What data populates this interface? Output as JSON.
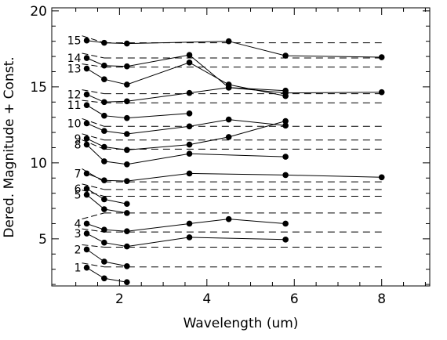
{
  "chart_data": {
    "type": "line",
    "title": "",
    "xlabel": "Wavelength (um)",
    "ylabel": "Dered. Magnitude + Const.",
    "xlim": [
      0.45,
      9.1
    ],
    "ylim": [
      1.9,
      20.2
    ],
    "x_ticks": [
      2,
      4,
      6,
      8
    ],
    "y_ticks": [
      5,
      10,
      15,
      20
    ],
    "grid": false,
    "legend": "none",
    "series": [
      {
        "name": "1",
        "baseline": 3.15,
        "x": [
          1.25,
          1.65,
          2.17
        ],
        "y": [
          3.1,
          2.4,
          2.15
        ]
      },
      {
        "name": "2",
        "baseline": 4.45,
        "x": [
          1.25,
          1.65,
          2.17
        ],
        "y": [
          4.3,
          3.5,
          3.2
        ]
      },
      {
        "name": "3",
        "baseline": 5.45,
        "x": [
          1.25,
          1.65,
          2.17,
          3.6,
          5.8
        ],
        "y": [
          5.35,
          4.75,
          4.5,
          5.1,
          4.95
        ]
      },
      {
        "name": "4",
        "baseline": 6.7,
        "x": [
          1.25,
          1.65,
          2.17,
          3.6,
          4.5,
          5.8
        ],
        "y": [
          6.0,
          5.6,
          5.5,
          6.0,
          6.3,
          6.0
        ]
      },
      {
        "name": "5",
        "baseline": 7.8,
        "x": [
          1.25,
          1.65,
          2.17
        ],
        "y": [
          7.9,
          6.95,
          6.7
        ]
      },
      {
        "name": "6",
        "baseline": 8.25,
        "x": [
          1.25,
          1.65,
          2.17
        ],
        "y": [
          8.3,
          7.6,
          7.3
        ]
      },
      {
        "name": "7",
        "baseline": 8.75,
        "x": [
          1.25,
          1.65,
          2.17,
          3.6,
          5.8,
          8.0
        ],
        "y": [
          9.3,
          8.85,
          8.8,
          9.3,
          9.2,
          9.05
        ]
      },
      {
        "name": "8",
        "baseline": 10.9,
        "x": [
          1.25,
          1.65,
          2.17,
          3.6,
          5.8
        ],
        "y": [
          11.2,
          10.1,
          9.9,
          10.6,
          10.4
        ]
      },
      {
        "name": "9",
        "baseline": 11.5,
        "x": [
          1.25,
          1.65,
          2.17,
          3.6,
          4.5,
          5.8
        ],
        "y": [
          11.6,
          11.05,
          10.85,
          11.2,
          11.7,
          12.75
        ]
      },
      {
        "name": "10",
        "baseline": 12.4,
        "x": [
          1.25,
          1.65,
          2.17,
          3.6,
          4.5,
          5.8
        ],
        "y": [
          12.6,
          12.1,
          11.9,
          12.4,
          12.85,
          12.45
        ]
      },
      {
        "name": "11",
        "baseline": 13.95,
        "x": [
          1.25,
          1.65,
          2.17,
          3.6
        ],
        "y": [
          13.8,
          13.1,
          12.95,
          13.25
        ]
      },
      {
        "name": "12",
        "baseline": 14.55,
        "x": [
          1.25,
          1.65,
          2.17,
          3.6,
          4.5,
          5.8,
          8.0
        ],
        "y": [
          14.5,
          14.0,
          14.05,
          14.6,
          14.95,
          14.6,
          14.65
        ]
      },
      {
        "name": "13",
        "baseline": 16.3,
        "x": [
          1.25,
          1.65,
          2.17,
          3.6,
          4.5,
          5.8
        ],
        "y": [
          16.2,
          15.5,
          15.15,
          16.6,
          15.15,
          14.4
        ]
      },
      {
        "name": "14",
        "baseline": 16.9,
        "x": [
          1.25,
          1.65,
          2.17,
          3.6,
          4.5,
          5.8
        ],
        "y": [
          16.9,
          16.4,
          16.35,
          17.1,
          14.95,
          14.75
        ]
      },
      {
        "name": "15",
        "baseline": 17.9,
        "x": [
          1.25,
          1.65,
          2.17,
          4.5,
          5.8,
          8.0
        ],
        "y": [
          18.05,
          17.9,
          17.85,
          18.0,
          17.05,
          16.95
        ]
      }
    ]
  }
}
